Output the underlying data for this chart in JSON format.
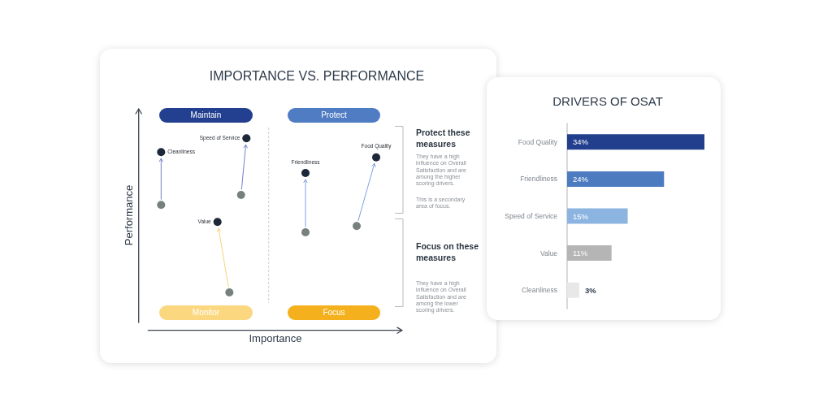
{
  "chart_data": [
    {
      "type": "other",
      "title": "IMPORTANCE VS. PERFORMANCE",
      "xlabel": "Importance",
      "ylabel": "Performance",
      "annotations": [
        "Maintain",
        "Protect",
        "Monitor",
        "Focus",
        "Protect these measures",
        "They have a high influence on Overall Satisfaction and are among the higher scoring drivers.",
        "This is a secondary area of focus.",
        "Focus on these measures",
        "They have a high influence on Overall Satisfaction and are among the lower scoring drivers.",
        "Cleanliness",
        "Speed of Service",
        "Value",
        "Friendliness",
        "Food Quality"
      ]
    },
    {
      "type": "bar",
      "orientation": "horizontal",
      "title": "DRIVERS OF OSAT",
      "categories": [
        "Food Quality",
        "Friendliness",
        "Speed of Service",
        "Value",
        "Cleanliness"
      ],
      "values": [
        34,
        24,
        15,
        11,
        3
      ],
      "colors": [
        "#213f8d",
        "#4d7bc0",
        "#8cb4e0",
        "#b4b5b4",
        "#e8e8e8"
      ],
      "value_labels": [
        "34%",
        "24%",
        "15%",
        "11%",
        "3%"
      ],
      "tick_labels": "y"
    }
  ]
}
